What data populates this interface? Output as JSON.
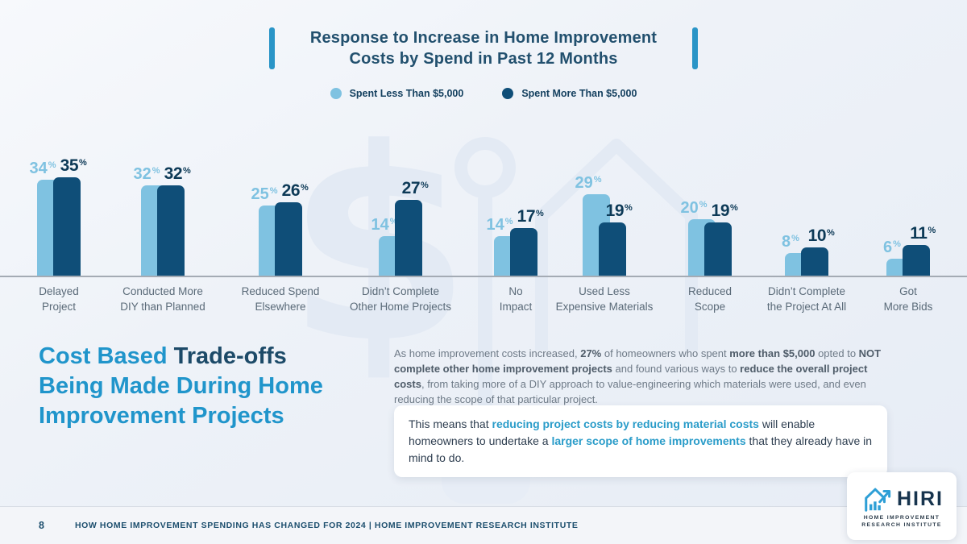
{
  "header": {
    "title_line1": "Response to Increase in Home Improvement",
    "title_line2": "Costs by Spend in Past 12 Months"
  },
  "legend": [
    {
      "label": "Spent Less Than $5,000",
      "color": "#7fc2e1"
    },
    {
      "label": "Spent More Than $5,000",
      "color": "#0f4e78"
    }
  ],
  "chart_data": {
    "type": "bar",
    "title": "Response to Increase in Home Improvement Costs by Spend in Past 12 Months",
    "categories": [
      "Delayed Project",
      "Conducted More DIY than Planned",
      "Reduced Spend Elsewhere",
      "Didn’t Complete Other Home Projects",
      "No Impact",
      "Used Less Expensive Materials",
      "Reduced Scope",
      "Didn’t Complete the Project At All",
      "Got More Bids"
    ],
    "category_lines": [
      [
        "Delayed",
        "Project"
      ],
      [
        "Conducted More",
        "DIY than Planned"
      ],
      [
        "Reduced Spend",
        "Elsewhere"
      ],
      [
        "Didn’t Complete",
        "Other Home Projects"
      ],
      [
        "No",
        "Impact"
      ],
      [
        "Used Less",
        "Expensive Materials"
      ],
      [
        "Reduced",
        "Scope"
      ],
      [
        "Didn’t Complete",
        "the Project At All"
      ],
      [
        "Got",
        "More Bids"
      ]
    ],
    "series": [
      {
        "name": "Spent Less Than $5,000",
        "color": "#7fc2e1",
        "values": [
          34,
          32,
          25,
          14,
          14,
          29,
          20,
          8,
          6
        ]
      },
      {
        "name": "Spent More Than $5,000",
        "color": "#0f4e78",
        "values": [
          35,
          32,
          26,
          27,
          17,
          19,
          19,
          10,
          11
        ]
      }
    ],
    "unit": "%",
    "ylim": [
      0,
      40
    ],
    "grid": false,
    "legend_position": "top"
  },
  "section": {
    "heading_lines": [
      [
        {
          "t": "Cost Based ",
          "c": "light"
        },
        {
          "t": "Trade-offs",
          "c": "dark"
        }
      ],
      [
        {
          "t": "Being Made During Home",
          "c": "light"
        }
      ],
      [
        {
          "t": "Improvement Projects",
          "c": "light"
        }
      ]
    ],
    "paragraph_segments": [
      {
        "t": "As home improvement costs increased, "
      },
      {
        "t": "27%",
        "c": "b"
      },
      {
        "t": " of homeowners who spent "
      },
      {
        "t": "more than $5,000",
        "c": "b"
      },
      {
        "t": " opted to "
      },
      {
        "t": "NOT complete other home improvement projects",
        "c": "b"
      },
      {
        "t": " and found various ways to "
      },
      {
        "t": "reduce the overall project costs",
        "c": "b"
      },
      {
        "t": ", from taking more of a DIY approach to value-engineering which materials were used, and even reducing the scope of that particular project."
      }
    ],
    "callout_segments": [
      {
        "t": "This means that "
      },
      {
        "t": "reducing project costs by reducing material costs",
        "c": "hl"
      },
      {
        "t": " will enable homeowners to undertake a "
      },
      {
        "t": "larger scope of home improvements",
        "c": "hl"
      },
      {
        "t": " that they already have in mind to do."
      }
    ]
  },
  "footer": {
    "page_number": "8",
    "text": "HOW HOME IMPROVEMENT SPENDING HAS CHANGED FOR 2024  |  HOME IMPROVEMENT RESEARCH INSTITUTE"
  },
  "logo": {
    "name": "HIRI",
    "subline1": "HOME IMPROVEMENT",
    "subline2": "RESEARCH INSTITUTE"
  },
  "colors": {
    "accent_bar": "#2a95c7",
    "title_text": "#22506e",
    "bar_light": "#7fc2e1",
    "bar_dark": "#0f4e78",
    "value_light": "#7fc2e1",
    "value_dark": "#0d3a57",
    "heading_light": "#2095cb",
    "heading_dark": "#1c4a68",
    "highlight_teal": "#2a9cc9",
    "footer_text": "#1d4f6e",
    "watermark": "#e2e9f3"
  }
}
